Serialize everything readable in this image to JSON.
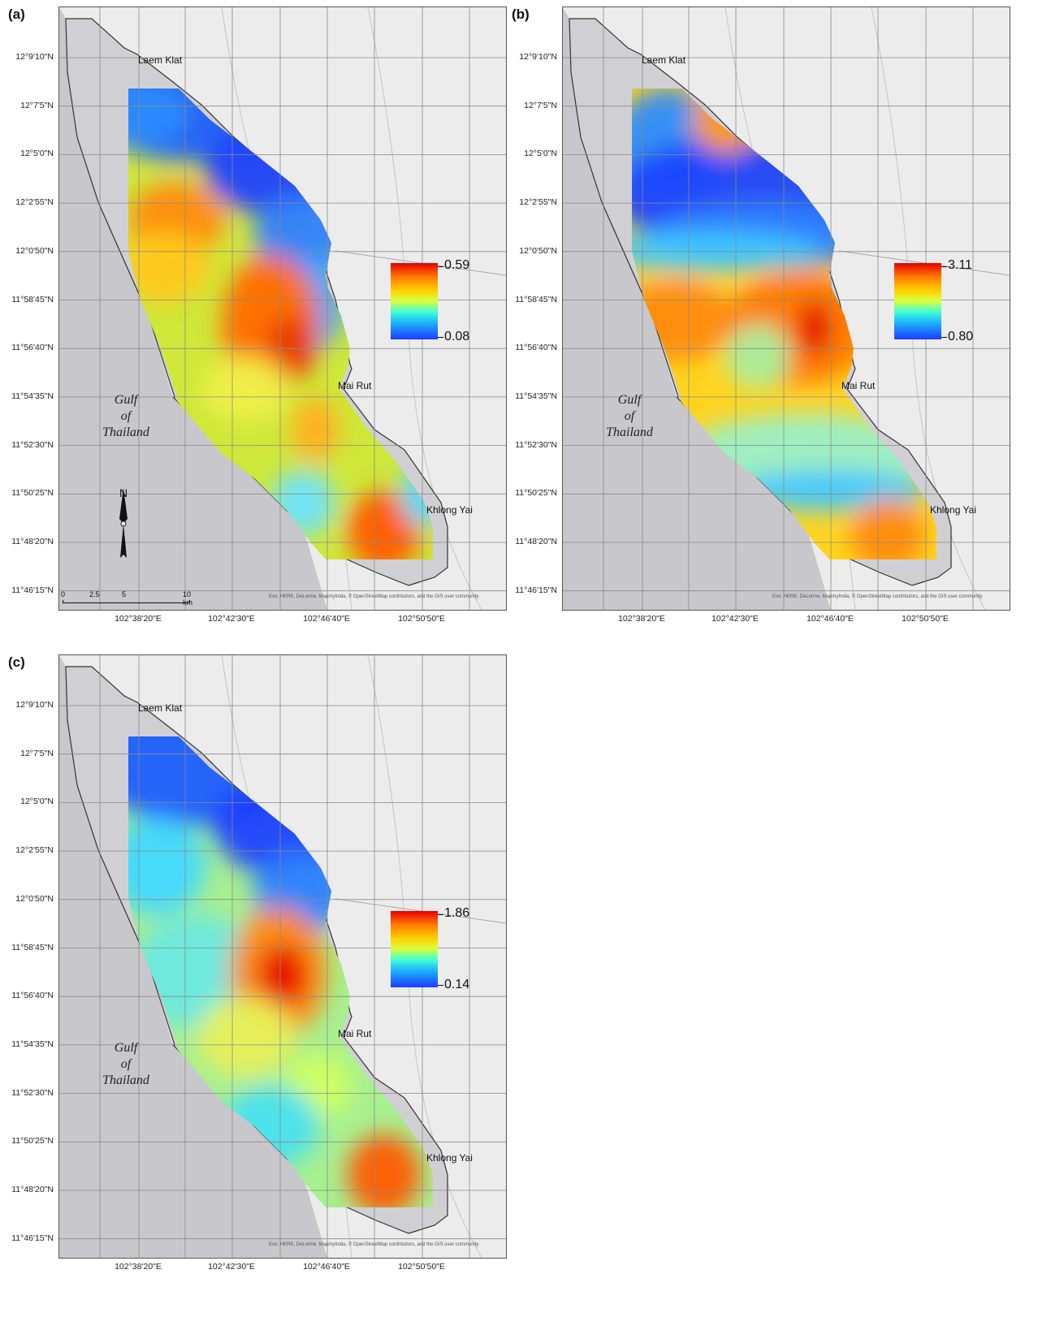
{
  "panels": [
    {
      "label": "(a)",
      "legend_max": "0.59",
      "legend_min": "0.08",
      "scheme": "a"
    },
    {
      "label": "(b)",
      "legend_max": "3.11",
      "legend_min": "0.80",
      "scheme": "b"
    },
    {
      "label": "(c)",
      "legend_max": "1.86",
      "legend_min": "0.14",
      "scheme": "c"
    }
  ],
  "latitudes": [
    "12°9'10\"N",
    "12°7'5\"N",
    "12°5'0\"N",
    "12°2'55\"N",
    "12°0'50\"N",
    "11°58'45\"N",
    "11°56'40\"N",
    "11°54'35\"N",
    "11°52'30\"N",
    "11°50'25\"N",
    "11°48'20\"N",
    "11°46'15\"N"
  ],
  "longitudes": [
    "102°38'20\"E",
    "102°42'30\"E",
    "102°46'40\"E",
    "102°50'50\"E"
  ],
  "places": {
    "laem_klat": "Laem Klat",
    "mai_rut": "Mai Rut",
    "khlong_yai": "Khlong Yai",
    "gulf_line1": "Gulf",
    "gulf_line2": "of",
    "gulf_line3": "Thailand"
  },
  "attribution": "Esri, HERE, DeLorme, MapmyIndia, © OpenStreetMap contributors, and the GIS user community",
  "scale": {
    "t0": "0",
    "t1": "2.5",
    "t2": "5",
    "t3": "10 km"
  },
  "north": "N",
  "colors": {
    "land": "#ececec",
    "sea": "#c8c8cc",
    "grid": "#8a8a8a",
    "outline": "#333333"
  }
}
